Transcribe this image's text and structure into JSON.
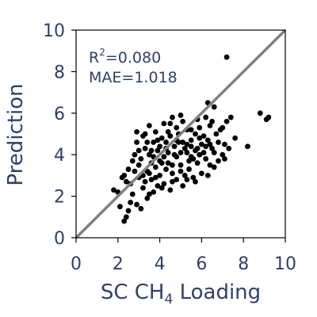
{
  "chart_data": {
    "type": "scatter",
    "xlabel_parts": [
      "SC CH",
      "4",
      " Loading"
    ],
    "ylabel": "Prediction",
    "xlim": [
      0,
      10
    ],
    "ylim": [
      0,
      10
    ],
    "x_ticks": [
      "0",
      "2",
      "4",
      "6",
      "8",
      "10"
    ],
    "y_ticks": [
      "0",
      "2",
      "4",
      "6",
      "8",
      "10"
    ],
    "grid": false,
    "reference_line": {
      "from": [
        0,
        0
      ],
      "to": [
        10,
        10
      ],
      "color": "#808080"
    },
    "annotations": {
      "r2_prefix": "R",
      "r2_sup": "2",
      "r2_value": "=0.080",
      "mae": "MAE=1.018"
    },
    "marker_color": "#000000",
    "axis_text_color": "#2e4169",
    "points": [
      [
        7.2,
        8.7
      ],
      [
        8.8,
        6.0
      ],
      [
        9.2,
        5.8
      ],
      [
        9.1,
        5.7
      ],
      [
        6.3,
        6.5
      ],
      [
        6.6,
        6.3
      ],
      [
        7.4,
        5.8
      ],
      [
        7.2,
        5.6
      ],
      [
        6.9,
        5.2
      ],
      [
        7.6,
        4.8
      ],
      [
        8.2,
        4.4
      ],
      [
        7.1,
        4.5
      ],
      [
        6.7,
        5.0
      ],
      [
        6.2,
        4.4
      ],
      [
        5.8,
        5.7
      ],
      [
        5.5,
        5.2
      ],
      [
        5.1,
        5.6
      ],
      [
        4.6,
        5.8
      ],
      [
        4.2,
        5.5
      ],
      [
        3.8,
        5.1
      ],
      [
        3.5,
        5.4
      ],
      [
        3.2,
        4.9
      ],
      [
        2.9,
        4.6
      ],
      [
        2.7,
        3.7
      ],
      [
        2.5,
        3.3
      ],
      [
        2.3,
        3.0
      ],
      [
        2.6,
        2.6
      ],
      [
        2.2,
        2.9
      ],
      [
        1.8,
        2.3
      ],
      [
        2.1,
        1.5
      ],
      [
        2.5,
        1.3
      ],
      [
        2.4,
        1.0
      ],
      [
        2.3,
        0.8
      ],
      [
        2.9,
        1.6
      ],
      [
        3.1,
        1.4
      ],
      [
        2.7,
        2.1
      ],
      [
        3.2,
        2.4
      ],
      [
        3.5,
        2.1
      ],
      [
        3.0,
        2.9
      ],
      [
        3.4,
        3.2
      ],
      [
        3.6,
        2.8
      ],
      [
        3.8,
        3.4
      ],
      [
        4.0,
        3.0
      ],
      [
        4.2,
        2.6
      ],
      [
        4.4,
        3.6
      ],
      [
        4.6,
        3.1
      ],
      [
        4.8,
        2.8
      ],
      [
        5.0,
        3.5
      ],
      [
        5.2,
        3.0
      ],
      [
        5.4,
        3.3
      ],
      [
        5.6,
        2.9
      ],
      [
        5.8,
        3.6
      ],
      [
        6.0,
        3.1
      ],
      [
        6.2,
        3.8
      ],
      [
        6.4,
        3.5
      ],
      [
        6.6,
        4.1
      ],
      [
        6.8,
        3.7
      ],
      [
        7.0,
        4.0
      ],
      [
        3.1,
        3.8
      ],
      [
        3.3,
        4.3
      ],
      [
        3.5,
        4.0
      ],
      [
        3.7,
        4.6
      ],
      [
        3.9,
        4.2
      ],
      [
        4.1,
        4.8
      ],
      [
        4.3,
        4.3
      ],
      [
        4.5,
        4.9
      ],
      [
        4.7,
        4.4
      ],
      [
        4.9,
        5.0
      ],
      [
        5.1,
        4.6
      ],
      [
        5.3,
        4.1
      ],
      [
        5.5,
        4.7
      ],
      [
        5.7,
        4.2
      ],
      [
        5.9,
        4.8
      ],
      [
        6.1,
        4.1
      ],
      [
        6.3,
        4.7
      ],
      [
        6.5,
        4.3
      ],
      [
        4.0,
        3.7
      ],
      [
        4.4,
        4.1
      ],
      [
        4.8,
        3.9
      ],
      [
        5.2,
        4.3
      ],
      [
        5.6,
        3.8
      ],
      [
        6.0,
        4.5
      ],
      [
        3.6,
        3.6
      ],
      [
        4.2,
        3.9
      ],
      [
        4.6,
        3.5
      ],
      [
        5.0,
        4.1
      ],
      [
        5.4,
        3.7
      ],
      [
        5.8,
        4.3
      ],
      [
        2.8,
        3.2
      ],
      [
        3.0,
        3.5
      ],
      [
        3.3,
        2.7
      ],
      [
        3.9,
        2.5
      ],
      [
        4.5,
        2.3
      ],
      [
        5.1,
        2.5
      ],
      [
        5.7,
        2.7
      ],
      [
        6.3,
        3.0
      ],
      [
        3.4,
        1.9
      ],
      [
        3.7,
        2.2
      ],
      [
        4.1,
        2.4
      ],
      [
        2.6,
        1.7
      ],
      [
        2.0,
        2.2
      ],
      [
        2.4,
        2.7
      ],
      [
        6.8,
        4.6
      ],
      [
        7.3,
        4.3
      ],
      [
        7.0,
        5.3
      ],
      [
        6.4,
        5.4
      ],
      [
        5.9,
        5.3
      ],
      [
        5.3,
        5.2
      ],
      [
        4.8,
        5.3
      ],
      [
        4.4,
        5.1
      ],
      [
        3.9,
        4.7
      ],
      [
        3.4,
        4.6
      ],
      [
        3.0,
        4.2
      ],
      [
        2.8,
        4.0
      ],
      [
        4.3,
        4.6
      ],
      [
        4.9,
        4.6
      ],
      [
        5.5,
        4.4
      ],
      [
        6.1,
        4.9
      ],
      [
        3.6,
        4.2
      ],
      [
        4.0,
        4.4
      ],
      [
        5.0,
        3.2
      ],
      [
        5.5,
        3.9
      ],
      [
        6.6,
        3.4
      ],
      [
        7.1,
        3.8
      ],
      [
        3.2,
        3.0
      ],
      [
        3.8,
        2.9
      ],
      [
        4.6,
        2.7
      ],
      [
        5.3,
        2.8
      ],
      [
        3.5,
        3.1
      ],
      [
        4.3,
        3.3
      ],
      [
        4.8,
        4.7
      ],
      [
        5.7,
        5.0
      ],
      [
        6.2,
        5.8
      ],
      [
        4.5,
        5.5
      ],
      [
        3.3,
        5.0
      ],
      [
        2.9,
        5.1
      ],
      [
        5.0,
        5.9
      ],
      [
        6.5,
        5.6
      ],
      [
        4.1,
        3.6
      ],
      [
        4.7,
        4.0
      ],
      [
        5.3,
        4.5
      ],
      [
        5.9,
        4.0
      ],
      [
        6.4,
        4.5
      ],
      [
        3.7,
        3.9
      ]
    ]
  }
}
